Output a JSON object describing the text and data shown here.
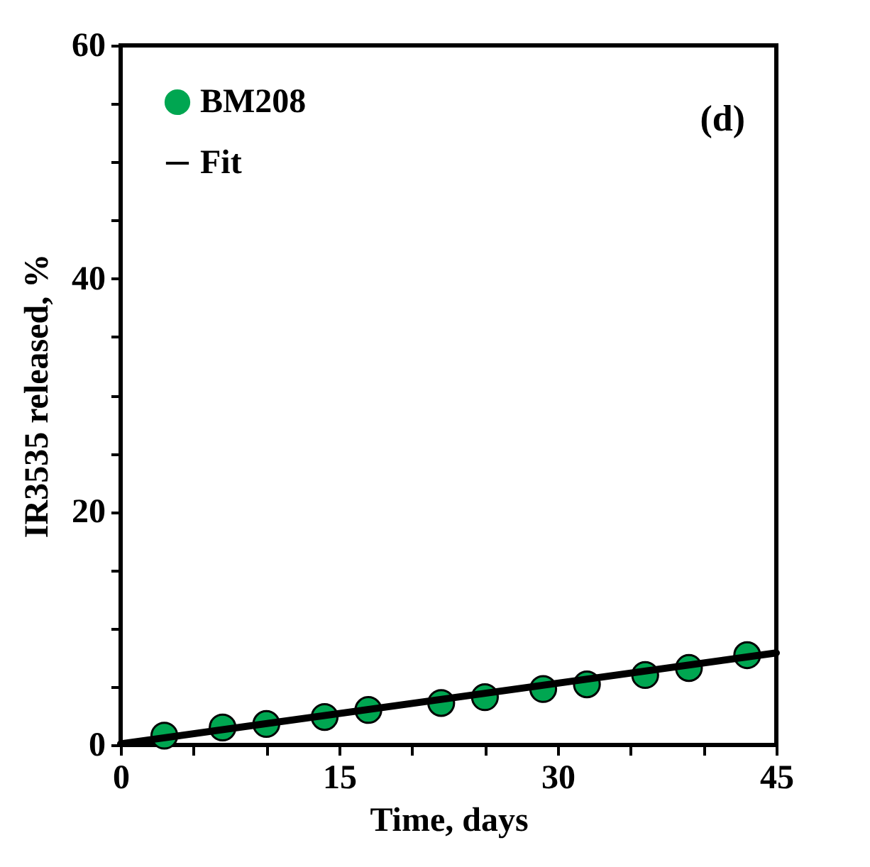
{
  "chart_data": {
    "type": "scatter",
    "xlabel": "Time, days",
    "ylabel": "IR3535 released, %",
    "xlim": [
      0,
      45
    ],
    "xticks": [
      0,
      {
        "value": 5,
        "label": null
      },
      {
        "value": 10,
        "label": null
      },
      15,
      {
        "value": 20,
        "label": null
      },
      {
        "value": 25,
        "label": null
      },
      30,
      {
        "value": 35,
        "label": null
      },
      {
        "value": 40,
        "label": null
      },
      45
    ],
    "ylim": [
      0,
      60
    ],
    "yticks": [
      0,
      {
        "value": 5,
        "label": null
      },
      {
        "value": 10,
        "label": null
      },
      {
        "value": 15,
        "label": null
      },
      20,
      {
        "value": 25,
        "label": null
      },
      {
        "value": 30,
        "label": null
      },
      {
        "value": 35,
        "label": null
      },
      40,
      {
        "value": 45,
        "label": null
      },
      {
        "value": 50,
        "label": null
      },
      {
        "value": 55,
        "label": null
      },
      60
    ],
    "legend": "top left",
    "annotations": [
      "(d)"
    ],
    "series": [
      {
        "name": "BM208",
        "marker": "circle",
        "color": "#00a651",
        "x": [
          3,
          7,
          10,
          14,
          17,
          22,
          25,
          29,
          32,
          36,
          39,
          43
        ],
        "values": [
          0.8,
          1.5,
          1.8,
          2.4,
          3.0,
          3.6,
          4.1,
          4.8,
          5.2,
          6.0,
          6.6,
          7.7
        ]
      },
      {
        "name": "Fit",
        "type": "line",
        "color": "#000000",
        "x": [
          0,
          45
        ],
        "values": [
          0.1,
          7.9
        ]
      }
    ]
  }
}
